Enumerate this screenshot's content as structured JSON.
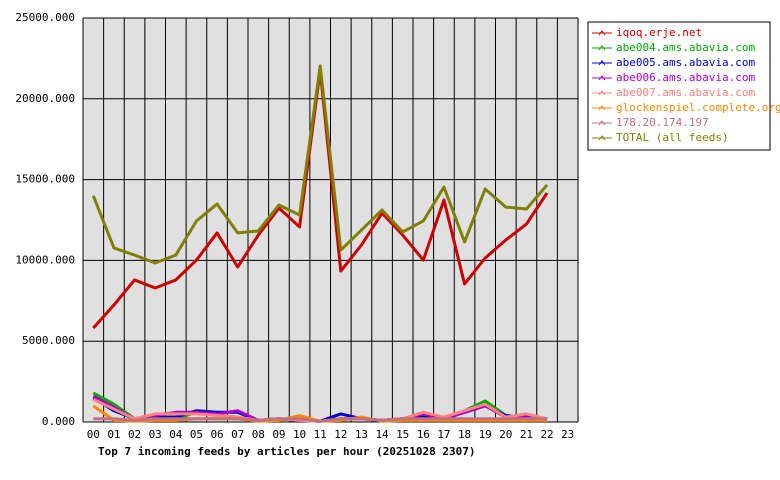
{
  "chart_data": {
    "type": "line",
    "title": "Top 7 incoming feeds by articles per hour (20251028 2307)",
    "categories": [
      "00",
      "01",
      "02",
      "03",
      "04",
      "05",
      "06",
      "07",
      "08",
      "09",
      "10",
      "11",
      "12",
      "13",
      "14",
      "15",
      "16",
      "17",
      "18",
      "19",
      "20",
      "21",
      "22",
      "23"
    ],
    "ylim": [
      0,
      25000
    ],
    "yticks": [
      {
        "value": 0,
        "label": "0.000"
      },
      {
        "value": 5000,
        "label": "5000.000"
      },
      {
        "value": 10000,
        "label": "10000.000"
      },
      {
        "value": 15000,
        "label": "15000.000"
      },
      {
        "value": 20000,
        "label": "20000.000"
      },
      {
        "value": 25000,
        "label": "25000.000"
      }
    ],
    "grid": true,
    "legend": "right",
    "series": [
      {
        "name": "iqoq.erje.net",
        "color": "#cc0000",
        "values": [
          5820,
          7240,
          8790,
          8290,
          8790,
          10020,
          11700,
          9590,
          11570,
          13240,
          12070,
          21780,
          9340,
          10950,
          12930,
          11570,
          10020,
          13740,
          8540,
          10150,
          11260,
          12250,
          14170,
          null
        ]
      },
      {
        "name": "abe004.ams.abavia.com",
        "color": "#00aa00",
        "values": [
          1800,
          1100,
          200,
          300,
          200,
          600,
          400,
          300,
          100,
          200,
          100,
          50,
          200,
          200,
          100,
          200,
          300,
          200,
          700,
          1300,
          400,
          300,
          200,
          null
        ]
      },
      {
        "name": "abe005.ams.abavia.com",
        "color": "#0000cc",
        "values": [
          1500,
          700,
          200,
          300,
          300,
          700,
          600,
          600,
          100,
          200,
          100,
          50,
          500,
          200,
          100,
          200,
          300,
          200,
          600,
          1000,
          400,
          300,
          200,
          null
        ]
      },
      {
        "name": "abe006.ams.abavia.com",
        "color": "#aa00cc",
        "values": [
          1600,
          900,
          200,
          400,
          600,
          600,
          500,
          700,
          100,
          200,
          100,
          50,
          200,
          200,
          100,
          200,
          500,
          200,
          600,
          1000,
          300,
          300,
          200,
          null
        ]
      },
      {
        "name": "abe007.ams.abavia.com",
        "color": "#ff8080",
        "values": [
          1400,
          800,
          200,
          500,
          500,
          500,
          400,
          300,
          100,
          200,
          100,
          50,
          200,
          200,
          100,
          200,
          600,
          300,
          700,
          1100,
          300,
          500,
          200,
          null
        ]
      },
      {
        "name": "glockenspiel.complete.org",
        "color": "#ff8800",
        "values": [
          1000,
          100,
          50,
          100,
          100,
          200,
          200,
          200,
          50,
          100,
          400,
          50,
          100,
          300,
          50,
          100,
          100,
          100,
          100,
          100,
          100,
          100,
          100,
          null
        ]
      },
      {
        "name": "178.20.174.197",
        "color": "#c07080",
        "values": [
          200,
          200,
          100,
          200,
          200,
          200,
          200,
          200,
          100,
          200,
          200,
          50,
          200,
          200,
          100,
          200,
          200,
          200,
          200,
          200,
          200,
          200,
          200,
          null
        ]
      },
      {
        "name": "TOTAL (all feeds)",
        "color": "#808000",
        "values": [
          14000,
          10770,
          10330,
          9840,
          10330,
          12440,
          13490,
          11700,
          11820,
          13430,
          12810,
          22030,
          10640,
          11880,
          13120,
          11760,
          12440,
          14540,
          11140,
          14420,
          13300,
          13180,
          14670,
          null
        ]
      }
    ]
  }
}
